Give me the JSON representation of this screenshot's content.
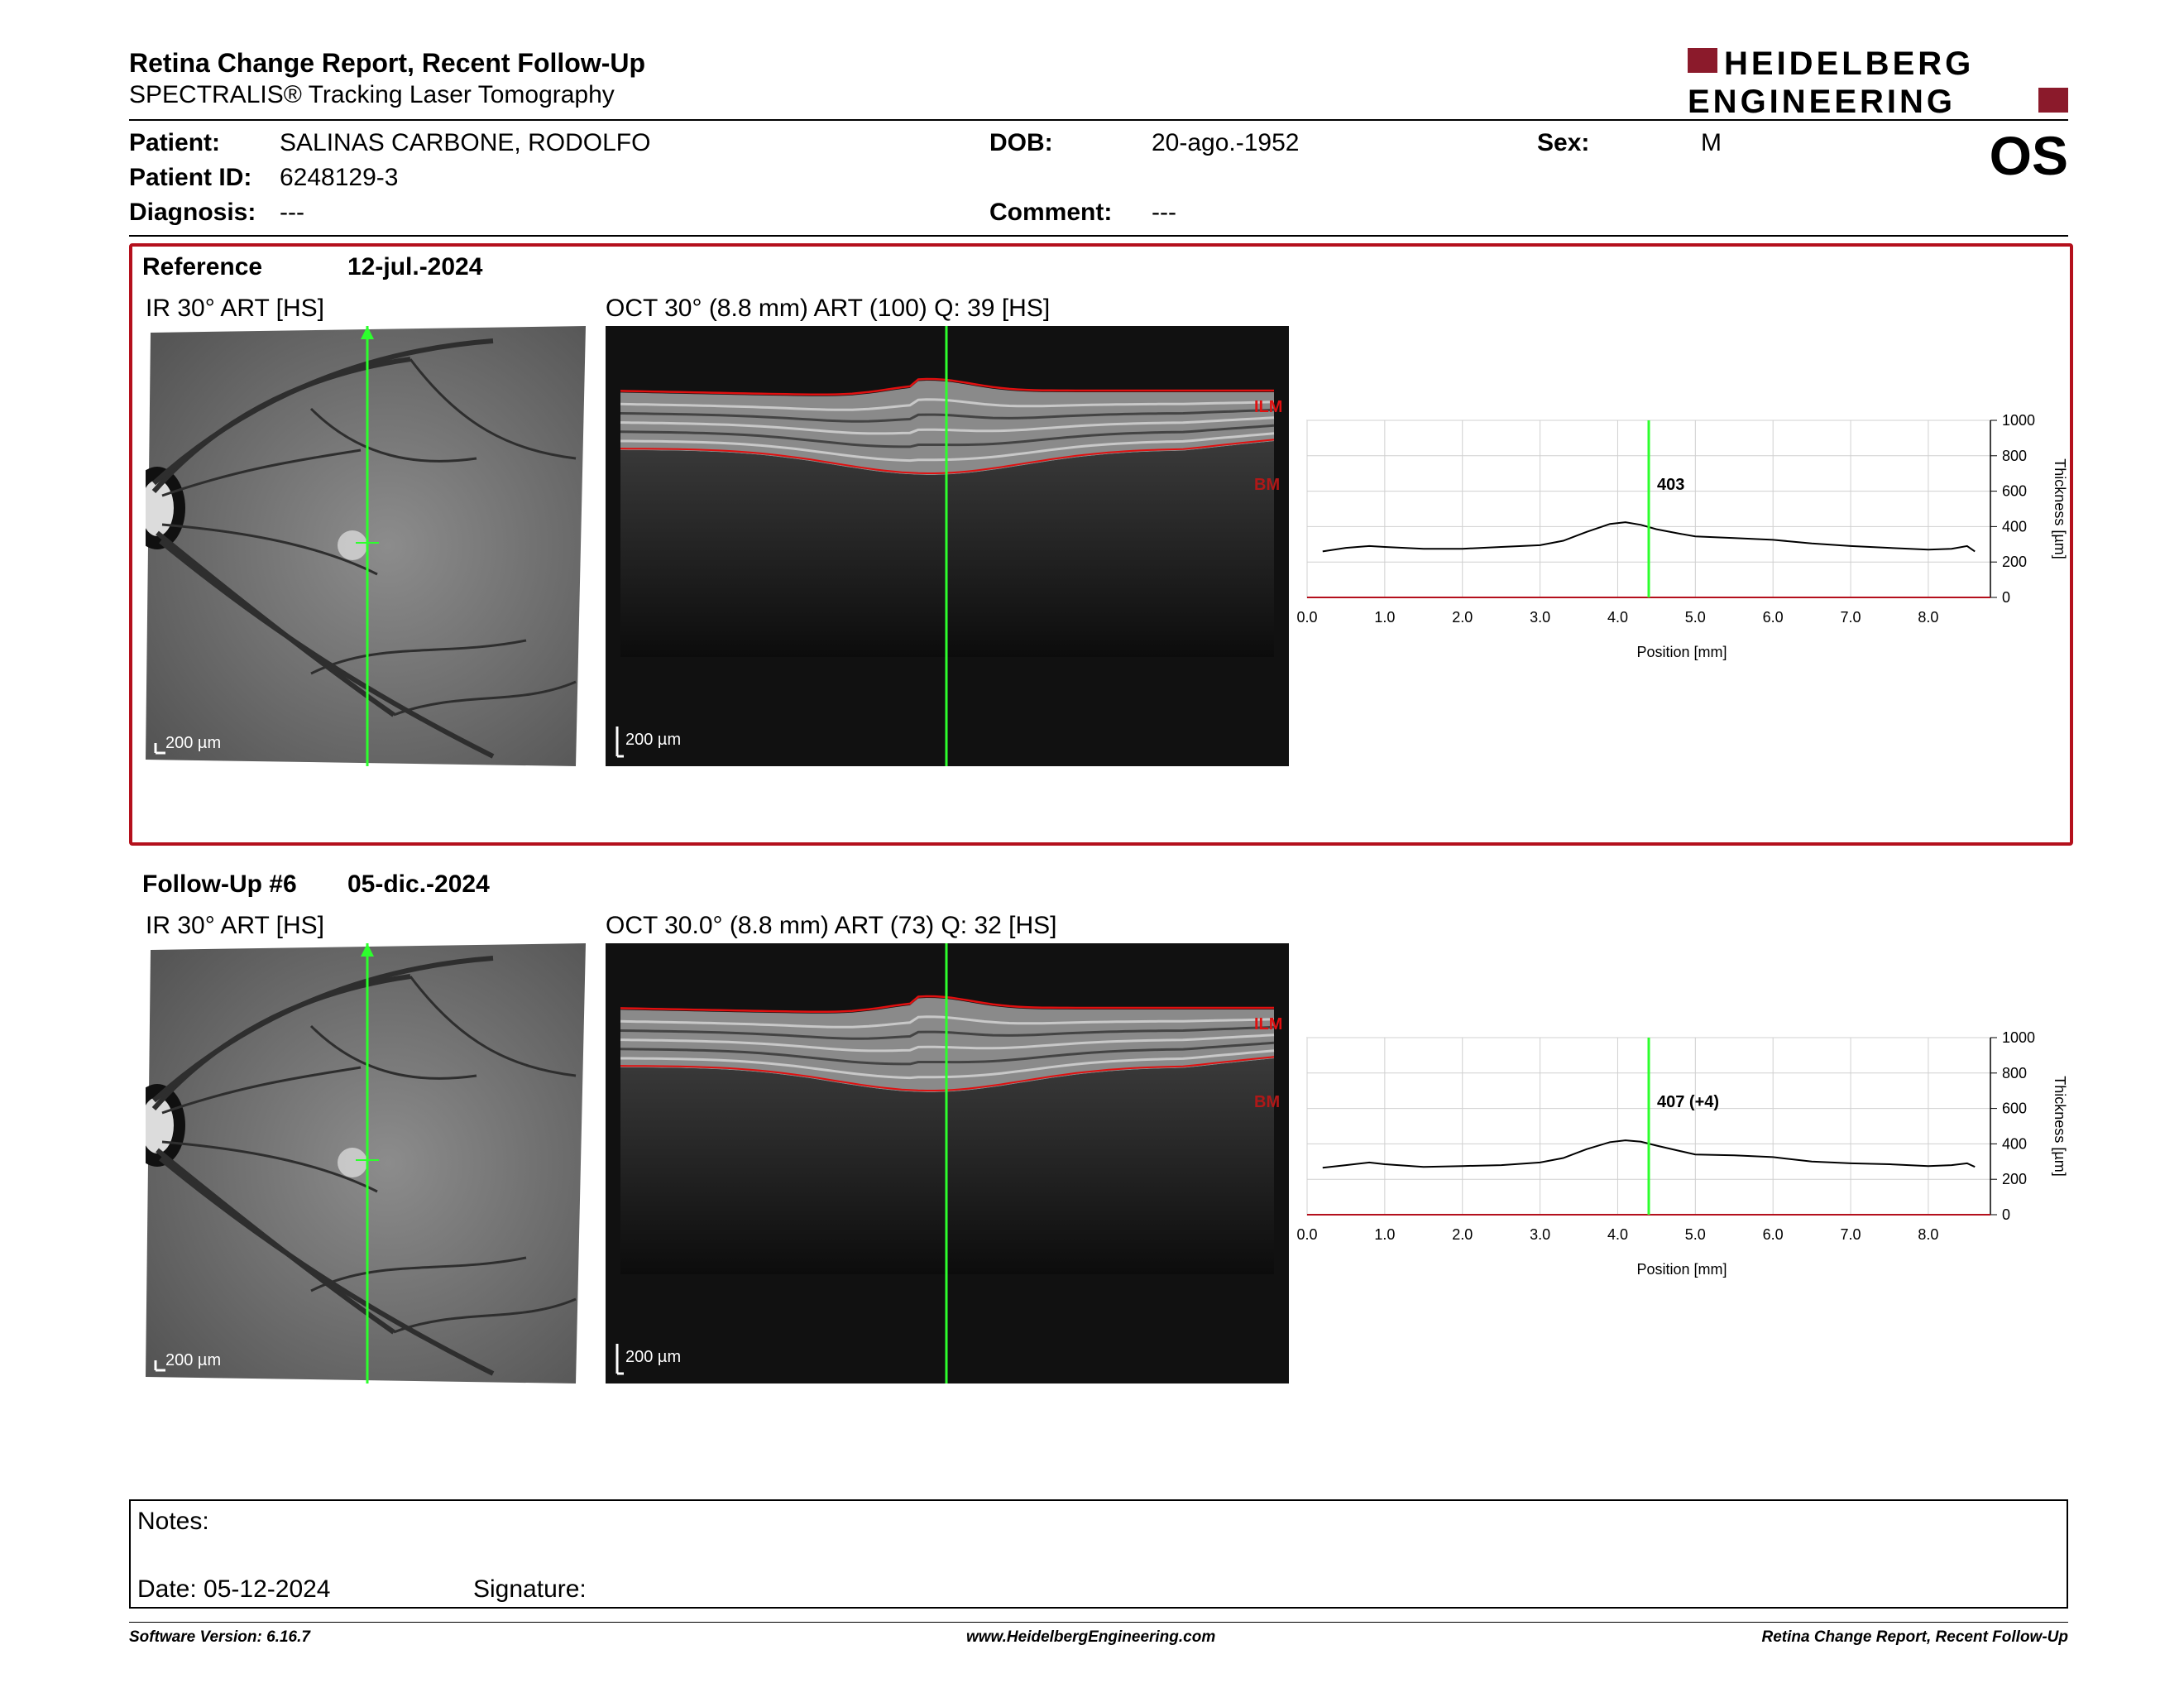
{
  "header": {
    "title": "Retina Change Report, Recent Follow-Up",
    "subtitle": "SPECTRALIS® Tracking Laser Tomography",
    "logo_line1": "HEIDELBERG",
    "logo_line2": "ENGINEERING",
    "brand_color": "#8b1a2b"
  },
  "patient": {
    "patient_label": "Patient:",
    "patient_value": "SALINAS CARBONE, RODOLFO",
    "id_label": "Patient ID:",
    "id_value": "6248129-3",
    "diagnosis_label": "Diagnosis:",
    "diagnosis_value": "---",
    "dob_label": "DOB:",
    "dob_value": "20-ago.-1952",
    "comment_label": "Comment:",
    "comment_value": "---",
    "sex_label": "Sex:",
    "sex_value": "M",
    "eye": "OS"
  },
  "reference": {
    "label": "Reference",
    "date": "12-jul.-2024",
    "ir_label": "IR 30° ART [HS]",
    "oct_label": "OCT 30° (8.8 mm) ART (100) Q: 39 [HS]",
    "ir_scale": "200 µm",
    "oct_scale": "200 µm",
    "ilm": "ILM",
    "bm": "BM",
    "marker_value": "403"
  },
  "followup": {
    "label": "Follow-Up #6",
    "date": "05-dic.-2024",
    "ir_label": "IR 30° ART [HS]",
    "oct_label": "OCT 30.0° (8.8 mm) ART (73) Q: 32 [HS]",
    "ir_scale": "200 µm",
    "oct_scale": "200 µm",
    "ilm": "ILM",
    "bm": "BM",
    "marker_value": "407 (+4)"
  },
  "chart_data": [
    {
      "type": "line",
      "title": "",
      "xlabel": "Position [mm]",
      "ylabel": "Thickness [µm]",
      "xlim": [
        0,
        8.8
      ],
      "ylim": [
        0,
        1000
      ],
      "x_ticks": [
        "0.0",
        "1.0",
        "2.0",
        "3.0",
        "4.0",
        "5.0",
        "6.0",
        "7.0",
        "8.0"
      ],
      "y_ticks": [
        "0",
        "200",
        "400",
        "600",
        "800",
        "1000"
      ],
      "grid": true,
      "marker_x": 4.4,
      "marker_label": "403",
      "series": [
        {
          "x": [
            0.2,
            0.5,
            0.8,
            1.0,
            1.5,
            2.0,
            2.5,
            3.0,
            3.3,
            3.6,
            3.9,
            4.1,
            4.3,
            4.5,
            4.8,
            5.0,
            5.5,
            6.0,
            6.5,
            7.0,
            7.5,
            8.0,
            8.3,
            8.5,
            8.6
          ],
          "y": [
            260,
            280,
            290,
            285,
            275,
            275,
            285,
            295,
            320,
            370,
            415,
            425,
            410,
            385,
            360,
            345,
            335,
            325,
            305,
            290,
            280,
            270,
            275,
            290,
            260
          ]
        }
      ]
    },
    {
      "type": "line",
      "title": "",
      "xlabel": "Position [mm]",
      "ylabel": "Thickness [µm]",
      "xlim": [
        0,
        8.8
      ],
      "ylim": [
        0,
        1000
      ],
      "x_ticks": [
        "0.0",
        "1.0",
        "2.0",
        "3.0",
        "4.0",
        "5.0",
        "6.0",
        "7.0",
        "8.0"
      ],
      "y_ticks": [
        "0",
        "200",
        "400",
        "600",
        "800",
        "1000"
      ],
      "grid": true,
      "marker_x": 4.4,
      "marker_label": "407 (+4)",
      "series": [
        {
          "x": [
            0.2,
            0.5,
            0.8,
            1.0,
            1.5,
            2.0,
            2.5,
            3.0,
            3.3,
            3.6,
            3.9,
            4.1,
            4.3,
            4.5,
            4.8,
            5.0,
            5.5,
            6.0,
            6.5,
            7.0,
            7.5,
            8.0,
            8.3,
            8.5,
            8.6
          ],
          "y": [
            265,
            280,
            295,
            285,
            270,
            275,
            280,
            295,
            320,
            370,
            410,
            420,
            412,
            390,
            360,
            340,
            335,
            325,
            300,
            290,
            285,
            275,
            280,
            290,
            270
          ]
        }
      ]
    }
  ],
  "notes": {
    "notes_label": "Notes:",
    "date_label": "Date: 05-12-2024",
    "signature_label": "Signature:"
  },
  "footer": {
    "software": "Software Version: 6.16.7",
    "website": "www.HeidelbergEngineering.com",
    "report": "Retina Change Report, Recent Follow-Up"
  }
}
